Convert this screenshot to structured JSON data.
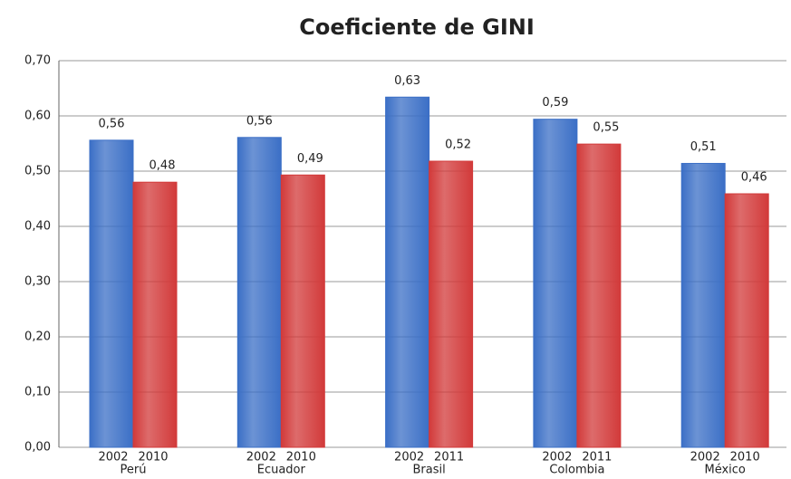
{
  "chart_data": {
    "type": "bar",
    "title": "Coeficiente de GINI",
    "categories": [
      "Perú",
      "Ecuador",
      "Brasil",
      "Colombia",
      "México"
    ],
    "series": [
      {
        "color": "#3b6fc6",
        "years": [
          "2002",
          "2002",
          "2002",
          "2002",
          "2002"
        ],
        "values": [
          0.556,
          0.561,
          0.634,
          0.594,
          0.514
        ],
        "value_labels": [
          "0,56",
          "0,56",
          "0,63",
          "0,59",
          "0,51"
        ]
      },
      {
        "color": "#d23a3a",
        "years": [
          "2010",
          "2010",
          "2011",
          "2011",
          "2010"
        ],
        "values": [
          0.48,
          0.493,
          0.518,
          0.549,
          0.459
        ],
        "value_labels": [
          "0,48",
          "0,49",
          "0,52",
          "0,55",
          "0,46"
        ]
      }
    ],
    "ylim": [
      0,
      0.7
    ],
    "yticks": [
      {
        "value": 0,
        "label": "0,00"
      },
      {
        "value": 0.1,
        "label": "0,10"
      },
      {
        "value": 0.2,
        "label": "0,20"
      },
      {
        "value": 0.3,
        "label": "0,30"
      },
      {
        "value": 0.4,
        "label": "0,40"
      },
      {
        "value": 0.5,
        "label": "0,50"
      },
      {
        "value": 0.6,
        "label": "0,60"
      },
      {
        "value": 0.7,
        "label": "0,70"
      }
    ],
    "grid": true
  }
}
